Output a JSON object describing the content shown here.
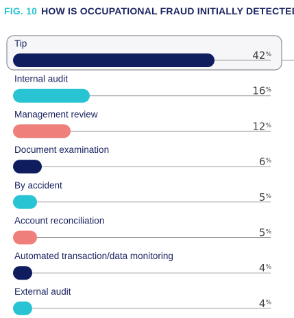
{
  "figure": {
    "number_label": "FIG. 10",
    "question": "HOW IS OCCUPATIONAL FRAUD INITIALLY DETECTED?"
  },
  "colors": {
    "navy": "#0f1d5e",
    "cyan": "#29c4d3",
    "salmon": "#ee7f7a",
    "text": "#1a2461",
    "line": "#9a9a9a",
    "highlight_border": "#8a8f99",
    "highlight_fill": "#f6f6f8"
  },
  "chart_data": {
    "type": "bar",
    "orientation": "horizontal",
    "title": "HOW IS OCCUPATIONAL FRAUD INITIALLY DETECTED?",
    "unit": "%",
    "xlim": [
      0,
      42
    ],
    "highlighted": "Tip",
    "categories": [
      "Tip",
      "Internal audit",
      "Management review",
      "Document examination",
      "By accident",
      "Account reconciliation",
      "Automated transaction/data monitoring",
      "External audit"
    ],
    "values": [
      42,
      16,
      12,
      6,
      5,
      5,
      4,
      4
    ],
    "bar_colors": [
      "navy",
      "cyan",
      "salmon",
      "navy",
      "cyan",
      "salmon",
      "navy",
      "cyan"
    ]
  }
}
